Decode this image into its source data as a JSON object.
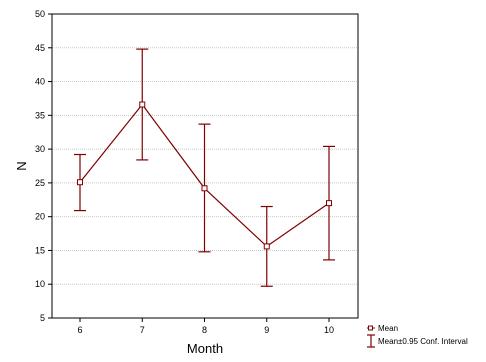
{
  "chart_data": {
    "type": "line",
    "title": "",
    "xlabel": "Month",
    "ylabel": "N",
    "categories": [
      "6",
      "7",
      "8",
      "9",
      "10"
    ],
    "series": [
      {
        "name": "Mean",
        "values": [
          25.1,
          36.6,
          24.2,
          15.6,
          22.0
        ],
        "lower": [
          20.9,
          28.4,
          14.8,
          9.7,
          13.6
        ],
        "upper": [
          29.2,
          44.8,
          33.7,
          21.5,
          30.4
        ]
      }
    ],
    "error_bar_label": "Mean±0.95 Conf. Interval",
    "yticks": [
      "5",
      "10",
      "15",
      "20",
      "25",
      "30",
      "35",
      "40",
      "45",
      "50"
    ],
    "ylim": [
      5,
      50
    ],
    "grid": "horizontal",
    "legend_position": "bottom-right",
    "colors": {
      "series": "#800000",
      "grid": "#c8c8c8",
      "frame": "#000000"
    }
  }
}
